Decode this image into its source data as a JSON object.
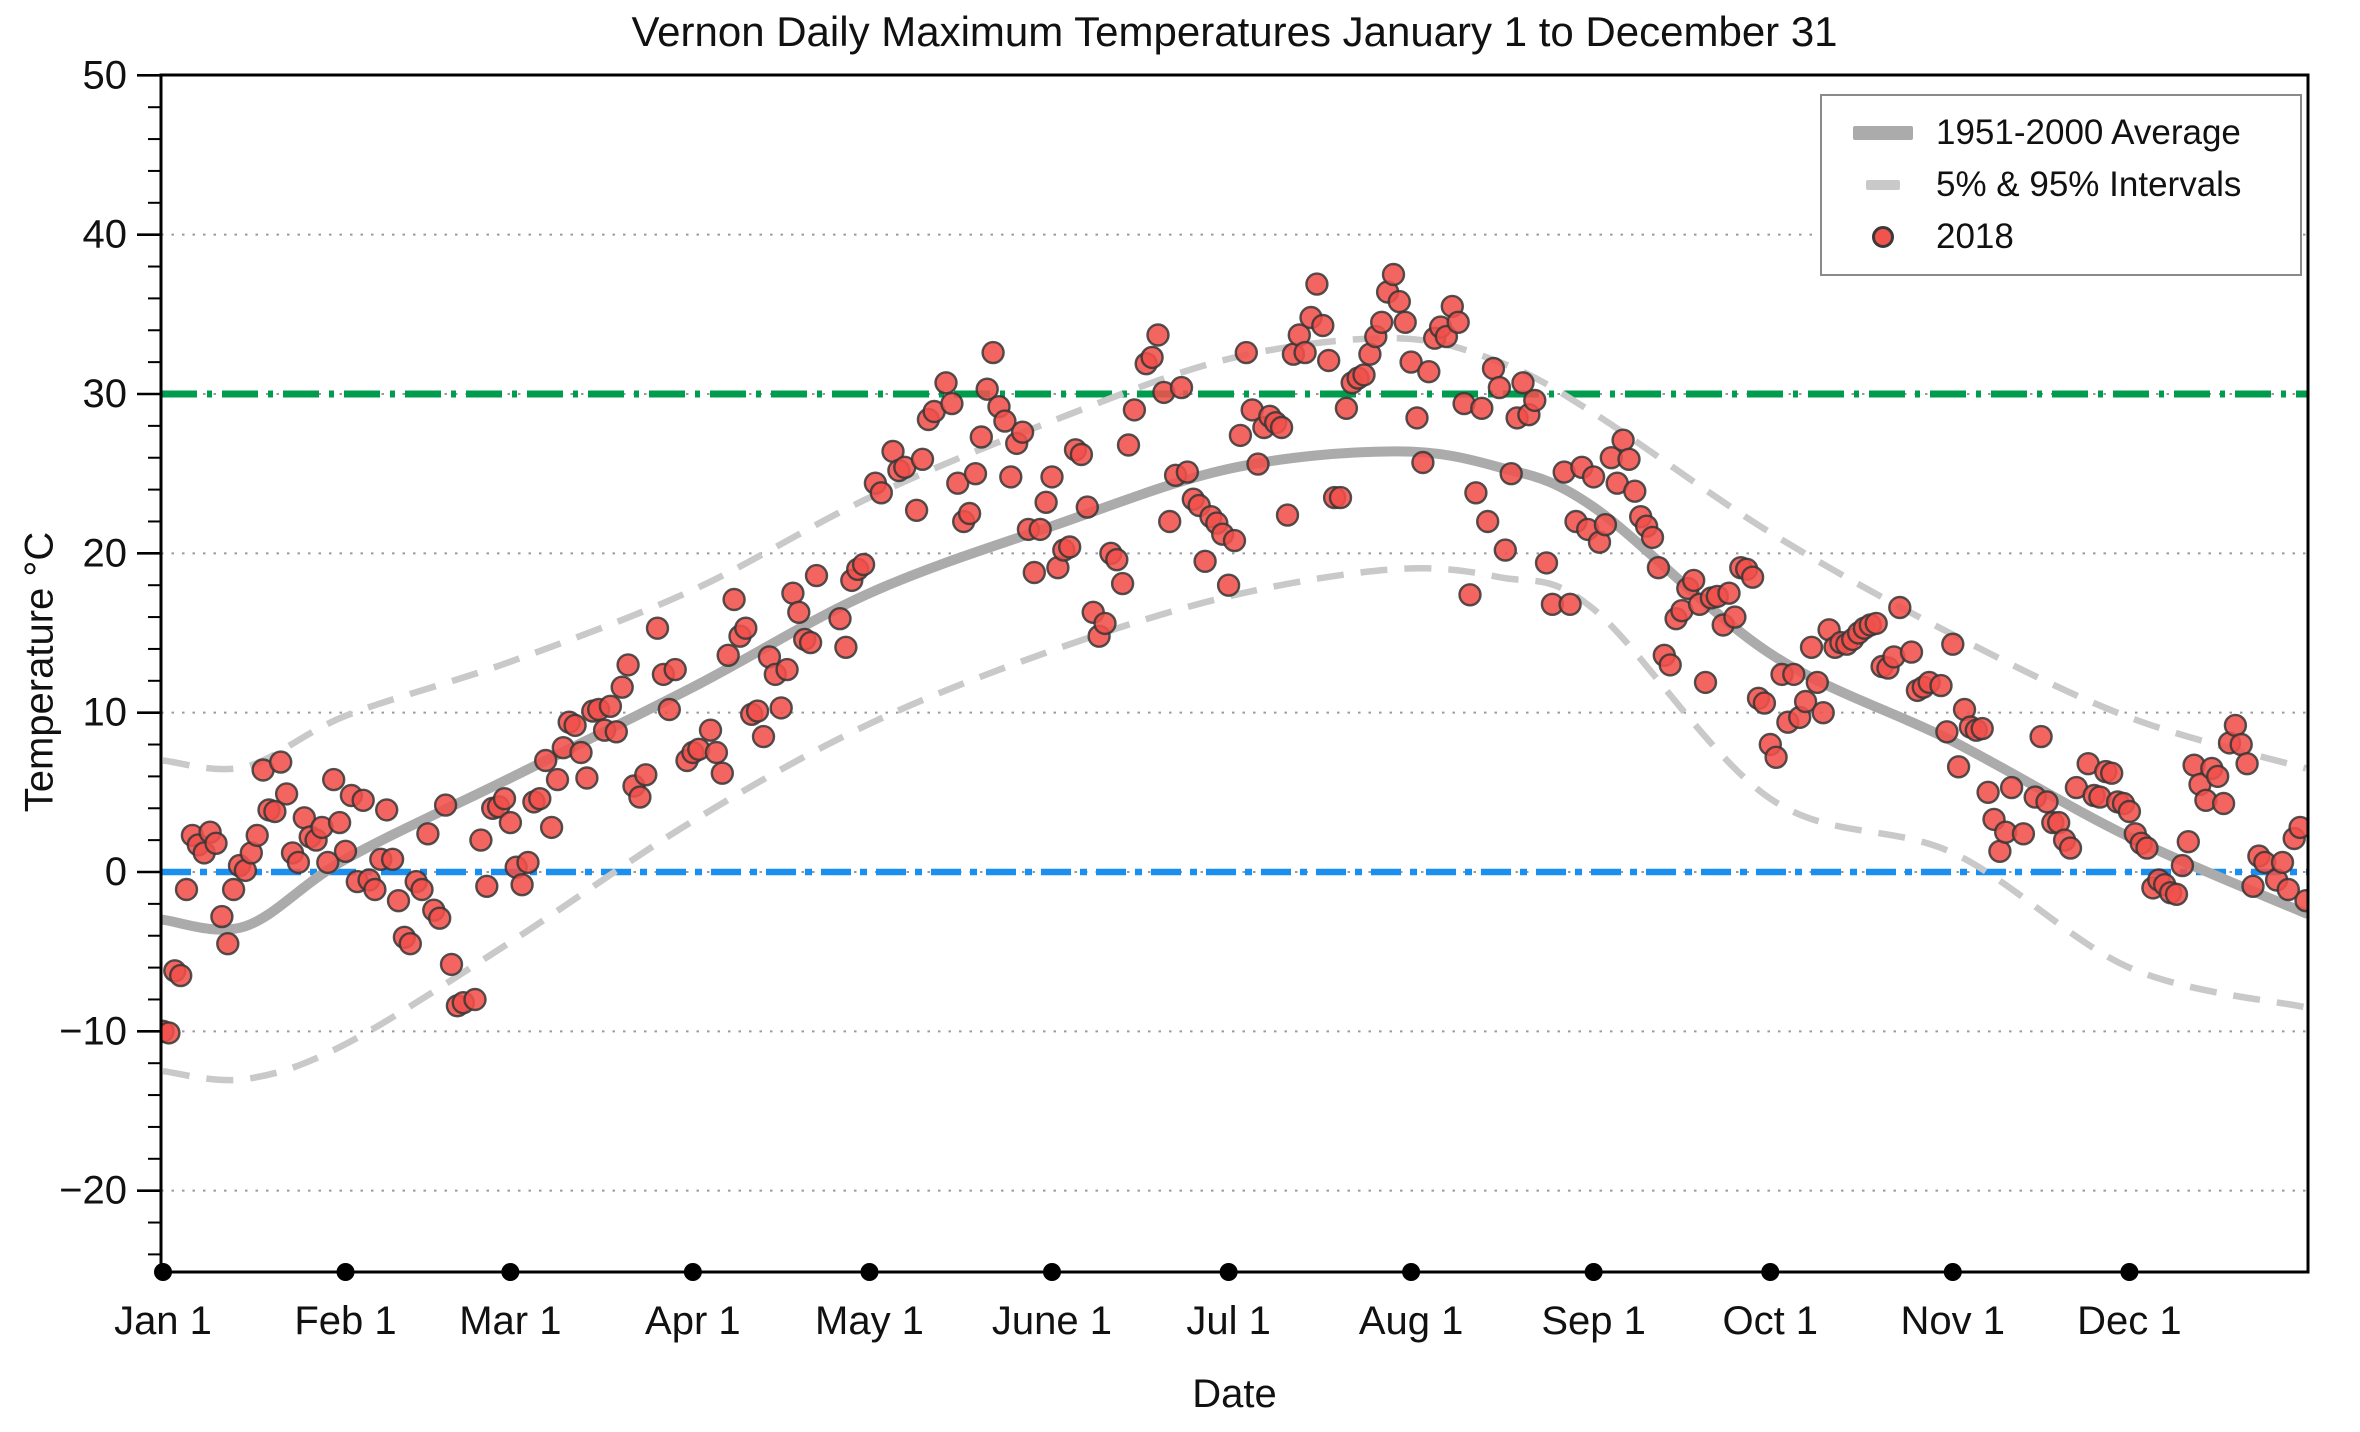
{
  "chart_data": {
    "type": "scatter",
    "title": "Vernon Daily Maximum Temperatures January 1 to December 31",
    "xlabel": "Date",
    "ylabel": "Temperature °C",
    "ylim": [
      -25,
      50
    ],
    "xlim_days": [
      1,
      366
    ],
    "grid": "dotted-horizontal",
    "y_major_ticks": [
      -20,
      -10,
      0,
      10,
      20,
      30,
      40,
      50
    ],
    "y_minor_step": 2,
    "x_tick_labels": [
      "Jan 1",
      "Feb 1",
      "Mar 1",
      "Apr 1",
      "May 1",
      "June 1",
      "Jul 1",
      "Aug 1",
      "Sep 1",
      "Oct 1",
      "Nov 1",
      "Dec 1"
    ],
    "month_start_days": [
      1,
      32,
      60,
      91,
      121,
      152,
      182,
      213,
      244,
      274,
      305,
      335
    ],
    "legend": {
      "position": "top-right",
      "entries": [
        {
          "label": "1951-2000 Average",
          "marker": "thick-line",
          "color": "#ababab"
        },
        {
          "label": "5% & 95% Intervals",
          "marker": "dashed-line",
          "color": "#c9c9c9"
        },
        {
          "label": "2018",
          "marker": "dot",
          "color": "#f0544c"
        }
      ]
    },
    "reference_lines": [
      {
        "name": "threshold-30C",
        "value": 30,
        "color": "#009c4e",
        "style": "dash-dot-heavy"
      },
      {
        "name": "freezing-0C",
        "value": 0,
        "color": "#1b8ff0",
        "style": "dash-dot"
      }
    ],
    "curves": {
      "control_days": [
        1,
        15,
        32,
        60,
        91,
        121,
        152,
        182,
        210,
        228,
        244,
        274,
        305,
        335,
        365
      ],
      "average_1951_2000": [
        -3.0,
        -3.4,
        0.8,
        5.9,
        11.6,
        17.5,
        21.7,
        25.3,
        26.4,
        25.4,
        22.9,
        13.7,
        8.2,
        2.2,
        -2.6
      ],
      "interval_95": [
        7.0,
        6.6,
        9.8,
        13.2,
        17.7,
        23.5,
        28.3,
        32.2,
        33.5,
        32.0,
        28.8,
        21.3,
        14.9,
        9.7,
        6.5
      ],
      "interval_5": [
        -12.5,
        -13.0,
        -10.8,
        -4.4,
        3.2,
        9.3,
        13.9,
        17.3,
        19.0,
        18.5,
        16.5,
        4.6,
        1.2,
        -6.0,
        -8.5
      ]
    },
    "scatter_2018": [
      [
        1,
        -10.0
      ],
      [
        2,
        -10.1
      ],
      [
        3,
        -6.2
      ],
      [
        4,
        -6.5
      ],
      [
        5,
        -1.1
      ],
      [
        6,
        2.3
      ],
      [
        7,
        1.7
      ],
      [
        8,
        1.2
      ],
      [
        9,
        2.5
      ],
      [
        10,
        1.8
      ],
      [
        11,
        -2.8
      ],
      [
        12,
        -4.5
      ],
      [
        13,
        -1.1
      ],
      [
        14,
        0.4
      ],
      [
        15,
        0.1
      ],
      [
        16,
        1.2
      ],
      [
        17,
        2.3
      ],
      [
        18,
        6.4
      ],
      [
        19,
        3.9
      ],
      [
        20,
        3.8
      ],
      [
        21,
        6.9
      ],
      [
        22,
        4.9
      ],
      [
        23,
        1.2
      ],
      [
        24,
        0.6
      ],
      [
        25,
        3.4
      ],
      [
        26,
        2.2
      ],
      [
        27,
        2.0
      ],
      [
        28,
        2.8
      ],
      [
        29,
        0.6
      ],
      [
        30,
        5.8
      ],
      [
        31,
        3.1
      ],
      [
        32,
        1.3
      ],
      [
        33,
        4.8
      ],
      [
        34,
        -0.6
      ],
      [
        35,
        4.5
      ],
      [
        36,
        -0.5
      ],
      [
        37,
        -1.1
      ],
      [
        38,
        0.8
      ],
      [
        39,
        3.9
      ],
      [
        40,
        0.8
      ],
      [
        41,
        -1.8
      ],
      [
        42,
        -4.1
      ],
      [
        43,
        -4.5
      ],
      [
        44,
        -0.6
      ],
      [
        45,
        -1.1
      ],
      [
        46,
        2.4
      ],
      [
        47,
        -2.4
      ],
      [
        48,
        -2.9
      ],
      [
        49,
        4.2
      ],
      [
        50,
        -5.8
      ],
      [
        51,
        -8.4
      ],
      [
        52,
        -8.2
      ],
      [
        54,
        -8.0
      ],
      [
        55,
        2.0
      ],
      [
        56,
        -0.9
      ],
      [
        57,
        4.0
      ],
      [
        58,
        4.1
      ],
      [
        59,
        4.6
      ],
      [
        60,
        3.1
      ],
      [
        61,
        0.3
      ],
      [
        62,
        -0.8
      ],
      [
        63,
        0.6
      ],
      [
        64,
        4.4
      ],
      [
        65,
        4.6
      ],
      [
        66,
        7.0
      ],
      [
        67,
        2.8
      ],
      [
        68,
        5.8
      ],
      [
        69,
        7.8
      ],
      [
        70,
        9.4
      ],
      [
        71,
        9.2
      ],
      [
        72,
        7.5
      ],
      [
        73,
        5.9
      ],
      [
        74,
        10.1
      ],
      [
        75,
        10.2
      ],
      [
        76,
        8.9
      ],
      [
        77,
        10.4
      ],
      [
        78,
        8.8
      ],
      [
        79,
        11.6
      ],
      [
        80,
        13.0
      ],
      [
        81,
        5.4
      ],
      [
        82,
        4.7
      ],
      [
        83,
        6.1
      ],
      [
        85,
        15.3
      ],
      [
        86,
        12.4
      ],
      [
        87,
        10.2
      ],
      [
        88,
        12.7
      ],
      [
        90,
        7.0
      ],
      [
        91,
        7.5
      ],
      [
        92,
        7.7
      ],
      [
        94,
        8.9
      ],
      [
        95,
        7.5
      ],
      [
        96,
        6.2
      ],
      [
        97,
        13.6
      ],
      [
        98,
        17.1
      ],
      [
        99,
        14.8
      ],
      [
        100,
        15.3
      ],
      [
        101,
        9.9
      ],
      [
        102,
        10.1
      ],
      [
        103,
        8.5
      ],
      [
        104,
        13.5
      ],
      [
        105,
        12.4
      ],
      [
        106,
        10.3
      ],
      [
        107,
        12.7
      ],
      [
        108,
        17.5
      ],
      [
        109,
        16.3
      ],
      [
        110,
        14.6
      ],
      [
        111,
        14.4
      ],
      [
        112,
        18.6
      ],
      [
        116,
        15.9
      ],
      [
        117,
        14.1
      ],
      [
        118,
        18.3
      ],
      [
        119,
        19.0
      ],
      [
        120,
        19.3
      ],
      [
        122,
        24.4
      ],
      [
        123,
        23.8
      ],
      [
        125,
        26.4
      ],
      [
        126,
        25.2
      ],
      [
        127,
        25.4
      ],
      [
        129,
        22.7
      ],
      [
        130,
        25.9
      ],
      [
        131,
        28.4
      ],
      [
        132,
        28.9
      ],
      [
        134,
        30.7
      ],
      [
        135,
        29.4
      ],
      [
        136,
        24.4
      ],
      [
        137,
        22.0
      ],
      [
        138,
        22.5
      ],
      [
        139,
        25.0
      ],
      [
        140,
        27.3
      ],
      [
        141,
        30.3
      ],
      [
        142,
        32.6
      ],
      [
        143,
        29.2
      ],
      [
        144,
        28.3
      ],
      [
        145,
        24.8
      ],
      [
        146,
        26.9
      ],
      [
        147,
        27.6
      ],
      [
        148,
        21.5
      ],
      [
        149,
        18.8
      ],
      [
        150,
        21.5
      ],
      [
        151,
        23.2
      ],
      [
        152,
        24.8
      ],
      [
        153,
        19.1
      ],
      [
        154,
        20.2
      ],
      [
        155,
        20.4
      ],
      [
        156,
        26.5
      ],
      [
        157,
        26.2
      ],
      [
        158,
        22.9
      ],
      [
        159,
        16.3
      ],
      [
        160,
        14.8
      ],
      [
        161,
        15.6
      ],
      [
        162,
        20.0
      ],
      [
        163,
        19.6
      ],
      [
        164,
        18.1
      ],
      [
        165,
        26.8
      ],
      [
        166,
        29.0
      ],
      [
        168,
        31.9
      ],
      [
        169,
        32.3
      ],
      [
        170,
        33.7
      ],
      [
        171,
        30.1
      ],
      [
        172,
        22.0
      ],
      [
        173,
        24.9
      ],
      [
        174,
        30.4
      ],
      [
        175,
        25.1
      ],
      [
        176,
        23.4
      ],
      [
        177,
        23.0
      ],
      [
        178,
        19.5
      ],
      [
        179,
        22.3
      ],
      [
        180,
        21.9
      ],
      [
        181,
        21.2
      ],
      [
        182,
        18.0
      ],
      [
        183,
        20.8
      ],
      [
        184,
        27.4
      ],
      [
        185,
        32.6
      ],
      [
        186,
        29.0
      ],
      [
        187,
        25.6
      ],
      [
        188,
        27.9
      ],
      [
        189,
        28.6
      ],
      [
        190,
        28.2
      ],
      [
        191,
        27.9
      ],
      [
        192,
        22.4
      ],
      [
        193,
        32.5
      ],
      [
        194,
        33.7
      ],
      [
        195,
        32.6
      ],
      [
        196,
        34.8
      ],
      [
        197,
        36.9
      ],
      [
        198,
        34.3
      ],
      [
        199,
        32.1
      ],
      [
        200,
        23.5
      ],
      [
        201,
        23.5
      ],
      [
        202,
        29.1
      ],
      [
        203,
        30.7
      ],
      [
        204,
        31.0
      ],
      [
        205,
        31.2
      ],
      [
        206,
        32.5
      ],
      [
        207,
        33.6
      ],
      [
        208,
        34.5
      ],
      [
        209,
        36.4
      ],
      [
        210,
        37.5
      ],
      [
        211,
        35.8
      ],
      [
        212,
        34.5
      ],
      [
        213,
        32.0
      ],
      [
        214,
        28.5
      ],
      [
        215,
        25.7
      ],
      [
        216,
        31.4
      ],
      [
        217,
        33.5
      ],
      [
        218,
        34.2
      ],
      [
        219,
        33.6
      ],
      [
        220,
        35.5
      ],
      [
        221,
        34.5
      ],
      [
        222,
        29.4
      ],
      [
        223,
        17.4
      ],
      [
        224,
        23.8
      ],
      [
        225,
        29.1
      ],
      [
        226,
        22.0
      ],
      [
        227,
        31.6
      ],
      [
        228,
        30.4
      ],
      [
        229,
        20.2
      ],
      [
        230,
        25.0
      ],
      [
        231,
        28.5
      ],
      [
        232,
        30.7
      ],
      [
        233,
        28.7
      ],
      [
        234,
        29.6
      ],
      [
        236,
        19.4
      ],
      [
        237,
        16.8
      ],
      [
        239,
        25.1
      ],
      [
        240,
        16.8
      ],
      [
        241,
        22.0
      ],
      [
        242,
        25.4
      ],
      [
        243,
        21.5
      ],
      [
        244,
        24.8
      ],
      [
        245,
        20.7
      ],
      [
        246,
        21.8
      ],
      [
        247,
        26.0
      ],
      [
        248,
        24.4
      ],
      [
        249,
        27.1
      ],
      [
        250,
        25.9
      ],
      [
        251,
        23.9
      ],
      [
        252,
        22.3
      ],
      [
        253,
        21.7
      ],
      [
        254,
        21.0
      ],
      [
        255,
        19.1
      ],
      [
        256,
        13.6
      ],
      [
        257,
        13.0
      ],
      [
        258,
        15.9
      ],
      [
        259,
        16.4
      ],
      [
        260,
        17.8
      ],
      [
        261,
        18.3
      ],
      [
        262,
        16.8
      ],
      [
        263,
        11.9
      ],
      [
        264,
        17.2
      ],
      [
        265,
        17.3
      ],
      [
        266,
        15.5
      ],
      [
        267,
        17.5
      ],
      [
        268,
        16.0
      ],
      [
        269,
        19.1
      ],
      [
        270,
        19.0
      ],
      [
        271,
        18.5
      ],
      [
        272,
        10.9
      ],
      [
        273,
        10.6
      ],
      [
        274,
        8.0
      ],
      [
        275,
        7.2
      ],
      [
        276,
        12.4
      ],
      [
        277,
        9.4
      ],
      [
        278,
        12.4
      ],
      [
        279,
        9.7
      ],
      [
        280,
        10.7
      ],
      [
        281,
        14.1
      ],
      [
        282,
        11.9
      ],
      [
        283,
        10.0
      ],
      [
        284,
        15.2
      ],
      [
        285,
        14.1
      ],
      [
        286,
        14.4
      ],
      [
        287,
        14.3
      ],
      [
        288,
        14.6
      ],
      [
        289,
        15.0
      ],
      [
        290,
        15.3
      ],
      [
        291,
        15.5
      ],
      [
        292,
        15.6
      ],
      [
        293,
        12.9
      ],
      [
        294,
        12.8
      ],
      [
        295,
        13.5
      ],
      [
        296,
        16.6
      ],
      [
        298,
        13.8
      ],
      [
        299,
        11.4
      ],
      [
        300,
        11.6
      ],
      [
        301,
        11.9
      ],
      [
        303,
        11.7
      ],
      [
        304,
        8.8
      ],
      [
        305,
        14.3
      ],
      [
        306,
        6.6
      ],
      [
        307,
        10.2
      ],
      [
        308,
        9.1
      ],
      [
        309,
        8.9
      ],
      [
        310,
        9.0
      ],
      [
        311,
        5.0
      ],
      [
        312,
        3.3
      ],
      [
        313,
        1.3
      ],
      [
        314,
        2.5
      ],
      [
        315,
        5.3
      ],
      [
        317,
        2.4
      ],
      [
        319,
        4.7
      ],
      [
        320,
        8.5
      ],
      [
        321,
        4.4
      ],
      [
        322,
        3.1
      ],
      [
        323,
        3.1
      ],
      [
        324,
        2.0
      ],
      [
        325,
        1.5
      ],
      [
        326,
        5.3
      ],
      [
        328,
        6.8
      ],
      [
        329,
        4.8
      ],
      [
        330,
        4.7
      ],
      [
        331,
        6.3
      ],
      [
        332,
        6.2
      ],
      [
        333,
        4.4
      ],
      [
        334,
        4.3
      ],
      [
        335,
        3.8
      ],
      [
        336,
        2.4
      ],
      [
        337,
        1.8
      ],
      [
        338,
        1.5
      ],
      [
        339,
        -1.0
      ],
      [
        340,
        -0.5
      ],
      [
        341,
        -0.8
      ],
      [
        342,
        -1.3
      ],
      [
        343,
        -1.4
      ],
      [
        344,
        0.4
      ],
      [
        345,
        1.9
      ],
      [
        346,
        6.7
      ],
      [
        347,
        5.5
      ],
      [
        348,
        4.5
      ],
      [
        349,
        6.5
      ],
      [
        350,
        6.0
      ],
      [
        351,
        4.3
      ],
      [
        352,
        8.1
      ],
      [
        353,
        9.2
      ],
      [
        354,
        8.0
      ],
      [
        355,
        6.8
      ],
      [
        356,
        -0.9
      ],
      [
        357,
        1.0
      ],
      [
        358,
        0.6
      ],
      [
        360,
        -0.5
      ],
      [
        361,
        0.6
      ],
      [
        362,
        -1.1
      ],
      [
        363,
        2.1
      ],
      [
        364,
        2.8
      ],
      [
        365,
        -1.8
      ]
    ],
    "colors": {
      "scatter_fill": "#f0504a",
      "scatter_edge": "#363636",
      "average_line": "#ababab",
      "interval_line": "#c9c9c9",
      "threshold_green": "#009c4e",
      "freezing_blue": "#1b8ff0",
      "grid_dotted": "#9a9a9a",
      "axis": "#000000"
    }
  }
}
